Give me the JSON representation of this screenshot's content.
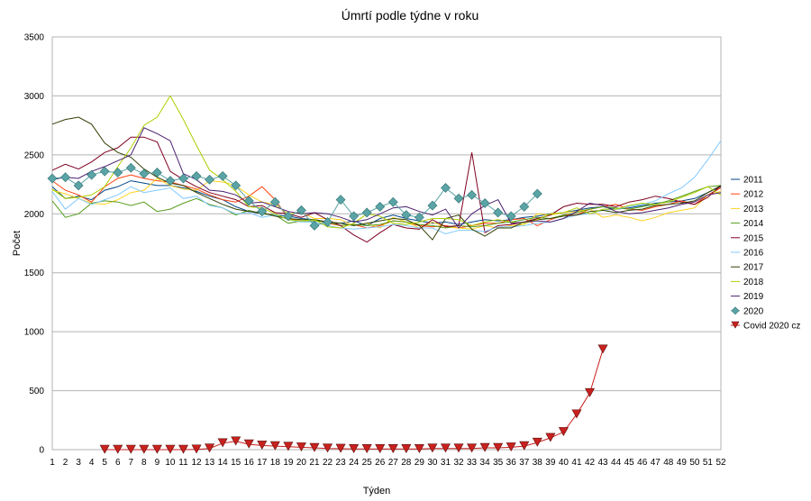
{
  "chart_data": {
    "type": "line",
    "title": "Úmrtí podle týdne v roku",
    "xlabel": "Týden",
    "ylabel": "Počet",
    "ylim": [
      0,
      3500
    ],
    "y_ticks": [
      0,
      500,
      1000,
      1500,
      2000,
      2500,
      3000,
      3500
    ],
    "grid": true,
    "legend_position": "right",
    "x": [
      1,
      2,
      3,
      4,
      5,
      6,
      7,
      8,
      9,
      10,
      11,
      12,
      13,
      14,
      15,
      16,
      17,
      18,
      19,
      20,
      21,
      22,
      23,
      24,
      25,
      26,
      27,
      28,
      29,
      30,
      31,
      32,
      33,
      34,
      35,
      36,
      37,
      38,
      39,
      40,
      41,
      42,
      43,
      44,
      45,
      46,
      47,
      48,
      49,
      50,
      51,
      52
    ],
    "series": [
      {
        "name": "2011",
        "color": "#004586",
        "marker": "none",
        "values": [
          2230,
          2130,
          2150,
          2120,
          2200,
          2230,
          2280,
          2260,
          2240,
          2240,
          2220,
          2190,
          2150,
          2120,
          2060,
          2020,
          2000,
          1990,
          1980,
          1960,
          1950,
          1930,
          1920,
          1940,
          1900,
          1960,
          1990,
          1960,
          1940,
          1920,
          1930,
          1910,
          1930,
          1950,
          1940,
          1950,
          1970,
          1980,
          2000,
          2010,
          2030,
          2050,
          2060,
          2040,
          2050,
          2070,
          2090,
          2100,
          2110,
          2130,
          2180,
          2230
        ]
      },
      {
        "name": "2012",
        "color": "#ff420e",
        "marker": "none",
        "values": [
          2280,
          2200,
          2160,
          2100,
          2230,
          2300,
          2330,
          2300,
          2280,
          2270,
          2240,
          2210,
          2160,
          2120,
          2100,
          2150,
          2230,
          2120,
          1960,
          1940,
          1950,
          1920,
          1900,
          1910,
          1880,
          1900,
          1940,
          1930,
          1900,
          1890,
          1900,
          1880,
          1900,
          1920,
          1920,
          1950,
          1960,
          1900,
          1950,
          1990,
          1990,
          2040,
          2060,
          2080,
          2040,
          2030,
          2060,
          2080,
          2110,
          2080,
          2160,
          2220
        ]
      },
      {
        "name": "2013",
        "color": "#ffd320",
        "marker": "none",
        "values": [
          2200,
          2170,
          2130,
          2090,
          2080,
          2120,
          2180,
          2200,
          2300,
          2240,
          2210,
          2200,
          2280,
          2270,
          2240,
          2160,
          2100,
          2080,
          2000,
          2010,
          1960,
          1960,
          1950,
          1900,
          1920,
          1880,
          1970,
          1930,
          1880,
          1930,
          1890,
          1880,
          1870,
          1900,
          1880,
          1900,
          1910,
          2000,
          1990,
          2010,
          2020,
          2040,
          1970,
          1990,
          1970,
          1940,
          1970,
          2010,
          2030,
          2050,
          2160,
          2190
        ]
      },
      {
        "name": "2014",
        "color": "#579d1c",
        "marker": "none",
        "values": [
          2110,
          1970,
          2000,
          2090,
          2110,
          2100,
          2070,
          2100,
          2020,
          2040,
          2090,
          2130,
          2080,
          2050,
          1990,
          2030,
          2000,
          1990,
          1920,
          1940,
          1940,
          1930,
          1900,
          1910,
          1900,
          1910,
          1940,
          1930,
          1910,
          1900,
          1880,
          1900,
          1890,
          1900,
          1920,
          1930,
          1950,
          1970,
          1960,
          1990,
          2010,
          2040,
          2060,
          2050,
          2040,
          2060,
          2080,
          2110,
          2150,
          2190,
          2230,
          2240
        ]
      },
      {
        "name": "2015",
        "color": "#7e0021",
        "marker": "none",
        "values": [
          2370,
          2420,
          2380,
          2440,
          2520,
          2560,
          2650,
          2650,
          2610,
          2360,
          2290,
          2230,
          2180,
          2150,
          2120,
          2060,
          2070,
          2010,
          2000,
          1970,
          2010,
          1950,
          1900,
          1820,
          1760,
          1840,
          1910,
          1880,
          1870,
          1950,
          1890,
          1900,
          2520,
          1840,
          1900,
          1910,
          1930,
          1960,
          1990,
          2060,
          2090,
          2080,
          2080,
          2060,
          2100,
          2120,
          2150,
          2130,
          2100,
          2080,
          2140,
          2240
        ]
      },
      {
        "name": "2016",
        "color": "#83caff",
        "marker": "none",
        "values": [
          2190,
          2040,
          2130,
          2080,
          2120,
          2160,
          2230,
          2180,
          2200,
          2220,
          2130,
          2150,
          2070,
          2050,
          2000,
          2010,
          1970,
          1990,
          1950,
          1930,
          1930,
          1900,
          1880,
          1870,
          1880,
          1890,
          1910,
          1900,
          1880,
          1880,
          1830,
          1860,
          1860,
          1850,
          1890,
          1890,
          1900,
          1920,
          1930,
          1960,
          1990,
          2000,
          2030,
          2040,
          2060,
          2080,
          2110,
          2170,
          2220,
          2310,
          2460,
          2620
        ]
      },
      {
        "name": "2017",
        "color": "#314004",
        "marker": "none",
        "values": [
          2760,
          2800,
          2820,
          2760,
          2600,
          2520,
          2480,
          2380,
          2310,
          2260,
          2240,
          2180,
          2130,
          2080,
          2040,
          2020,
          2010,
          1980,
          1960,
          1950,
          1950,
          1930,
          1920,
          1900,
          1920,
          1940,
          1960,
          1950,
          1900,
          1780,
          1960,
          1990,
          1870,
          1810,
          1880,
          1880,
          1930,
          1950,
          1960,
          1980,
          1990,
          2020,
          2030,
          2010,
          2030,
          2040,
          2070,
          2080,
          2090,
          2110,
          2180,
          2240
        ]
      },
      {
        "name": "2018",
        "color": "#aecf00",
        "marker": "none",
        "values": [
          2210,
          2130,
          2140,
          2160,
          2230,
          2400,
          2560,
          2750,
          2820,
          3000,
          2800,
          2580,
          2370,
          2290,
          2190,
          2060,
          2050,
          2000,
          1950,
          1940,
          1950,
          1890,
          1880,
          1920,
          2000,
          1980,
          1920,
          1910,
          1930,
          1960,
          1960,
          1950,
          1900,
          1930,
          1950,
          1930,
          1920,
          1950,
          2000,
          2010,
          2050,
          2000,
          2040,
          2040,
          2070,
          2090,
          2080,
          2100,
          2140,
          2180,
          2230,
          2160
        ]
      },
      {
        "name": "2019",
        "color": "#4b1f6f",
        "marker": "none",
        "values": [
          2290,
          2310,
          2300,
          2360,
          2400,
          2450,
          2500,
          2730,
          2680,
          2620,
          2340,
          2290,
          2200,
          2190,
          2160,
          2090,
          2100,
          2060,
          2020,
          2000,
          2010,
          2000,
          1970,
          1930,
          1950,
          2000,
          2050,
          2060,
          2020,
          1990,
          2040,
          1880,
          2000,
          2070,
          2120,
          1920,
          1930,
          1940,
          1930,
          1960,
          2020,
          2090,
          2070,
          2020,
          2000,
          2010,
          2030,
          2050,
          2080,
          2100,
          2160,
          2180
        ]
      },
      {
        "name": "2020",
        "color": "#5aa4a6",
        "marker": "diamond",
        "values": [
          2300,
          2310,
          2240,
          2330,
          2360,
          2350,
          2390,
          2340,
          2350,
          2280,
          2300,
          2320,
          2290,
          2320,
          2240,
          2110,
          2020,
          2100,
          1980,
          2030,
          1900,
          1930,
          2120,
          1980,
          2010,
          2060,
          2100,
          1990,
          1970,
          2070,
          2220,
          2130,
          2160,
          2090,
          2010,
          1980,
          2060,
          2170,
          null,
          null,
          null,
          null,
          null,
          null,
          null,
          null,
          null,
          null,
          null,
          null,
          null,
          null
        ]
      },
      {
        "name": "Covid 2020 cz",
        "color": "#c9211e",
        "marker": "triangle",
        "values": [
          null,
          null,
          null,
          null,
          0,
          0,
          0,
          0,
          0,
          0,
          0,
          2,
          10,
          55,
          70,
          45,
          35,
          30,
          25,
          20,
          15,
          10,
          8,
          5,
          5,
          5,
          5,
          5,
          5,
          10,
          10,
          10,
          10,
          15,
          15,
          20,
          30,
          60,
          100,
          150,
          300,
          480,
          850,
          null,
          null,
          null,
          null,
          null,
          null,
          null,
          null,
          null
        ]
      }
    ]
  }
}
